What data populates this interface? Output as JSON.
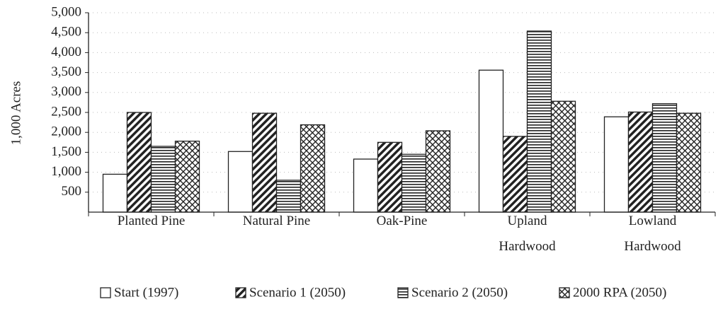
{
  "chart_data": {
    "type": "bar",
    "y_label": "1,000 Acres",
    "categories": [
      "Planted Pine",
      "Natural Pine",
      "Oak-Pine",
      "Upland\nHardwood",
      "Lowland\nHardwood"
    ],
    "series": [
      {
        "name": "Start (1997)",
        "pattern": "none",
        "color": "#222",
        "values": [
          950,
          1520,
          1330,
          3560,
          2390
        ]
      },
      {
        "name": "Scenario 1 (2050)",
        "pattern": "diagonal",
        "color": "#222",
        "values": [
          2500,
          2480,
          1750,
          1900,
          2510
        ]
      },
      {
        "name": "Scenario 2 (2050)",
        "pattern": "horizontal",
        "color": "#222",
        "values": [
          1650,
          800,
          1450,
          4540,
          2720
        ]
      },
      {
        "name": "2000 RPA (2050)",
        "pattern": "crosshatch",
        "color": "#222",
        "values": [
          1780,
          2190,
          2040,
          2780,
          2480
        ]
      }
    ],
    "ylim": [
      0,
      5000
    ],
    "yticks": [
      {
        "value": 500,
        "label": "500"
      },
      {
        "value": 1000,
        "label": "1,000"
      },
      {
        "value": 1500,
        "label": "1,500"
      },
      {
        "value": 2000,
        "label": "2,000"
      },
      {
        "value": 2500,
        "label": "2,500"
      },
      {
        "value": 3000,
        "label": "3,000"
      },
      {
        "value": 3500,
        "label": "3,500"
      },
      {
        "value": 4000,
        "label": "4,000"
      },
      {
        "value": 4500,
        "label": "4,500"
      },
      {
        "value": 5000,
        "label": "5,000"
      }
    ],
    "grid": true,
    "legend": "bottom"
  }
}
